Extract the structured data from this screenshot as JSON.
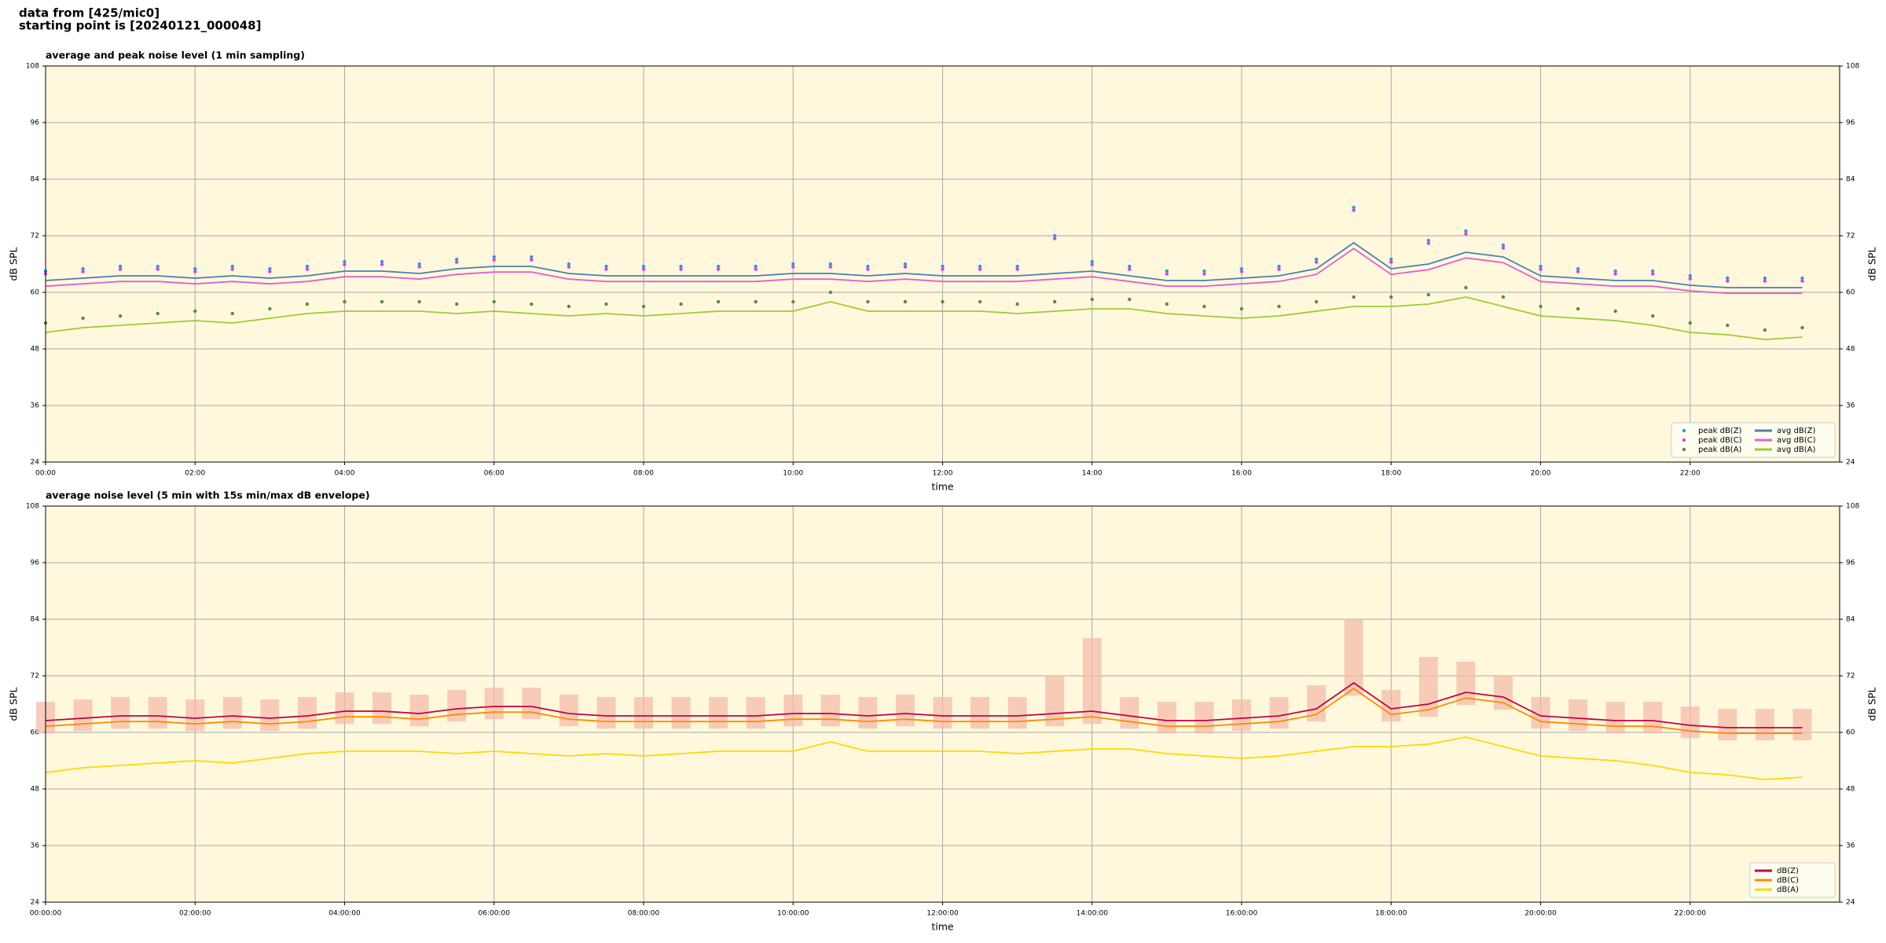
{
  "header": {
    "lines": [
      "data from [425/mic0]",
      "starting point is [20240121_000048]"
    ]
  },
  "chart_data": [
    {
      "type": "line",
      "title": "average and peak noise level (1 min sampling)",
      "xlabel": "time",
      "ylabel": "dB SPL",
      "x": [
        "00:00",
        "00:30",
        "01:00",
        "01:30",
        "02:00",
        "02:30",
        "03:00",
        "03:30",
        "04:00",
        "04:30",
        "05:00",
        "05:30",
        "06:00",
        "06:30",
        "07:00",
        "07:30",
        "08:00",
        "08:30",
        "09:00",
        "09:30",
        "10:00",
        "10:30",
        "11:00",
        "11:30",
        "12:00",
        "12:30",
        "13:00",
        "13:30",
        "14:00",
        "14:30",
        "15:00",
        "15:30",
        "16:00",
        "16:30",
        "17:00",
        "17:30",
        "18:00",
        "18:30",
        "19:00",
        "19:30",
        "20:00",
        "20:30",
        "21:00",
        "21:30",
        "22:00",
        "22:30",
        "23:00",
        "23:30"
      ],
      "xlim": [
        "00:00",
        "24:00"
      ],
      "xticks": [
        "00:00",
        "02:00",
        "04:00",
        "06:00",
        "08:00",
        "10:00",
        "12:00",
        "14:00",
        "16:00",
        "18:00",
        "20:00",
        "22:00"
      ],
      "ylim": [
        24,
        108
      ],
      "yticks": [
        24,
        36,
        48,
        60,
        72,
        84,
        96,
        108
      ],
      "grid": true,
      "legend": "lower right",
      "legend_columns": 2,
      "series": [
        {
          "name": "peak dB(Z)",
          "style": "dots",
          "color": "#1f9fde",
          "values": [
            64.5,
            65,
            65.5,
            65.5,
            65,
            65.5,
            65,
            65.5,
            66.5,
            66.5,
            66,
            67,
            67.5,
            67.5,
            66,
            65.5,
            65.5,
            65.5,
            65.5,
            65.5,
            66,
            66,
            65.5,
            66,
            65.5,
            65.5,
            65.5,
            72,
            66.5,
            65.5,
            64.5,
            64.5,
            65,
            65.5,
            67,
            78,
            67,
            71,
            73,
            70,
            65.5,
            65,
            64.5,
            64.5,
            63.5,
            63,
            63,
            63
          ]
        },
        {
          "name": "peak dB(C)",
          "style": "dots",
          "color": "#e040e0",
          "values": [
            63.9,
            64.4,
            64.9,
            64.9,
            64.4,
            64.9,
            64.4,
            64.9,
            65.9,
            65.9,
            65.4,
            66.4,
            66.9,
            66.9,
            65.4,
            64.9,
            64.9,
            64.9,
            64.9,
            64.9,
            65.4,
            65.4,
            64.9,
            65.4,
            64.9,
            64.9,
            64.9,
            71.4,
            65.9,
            64.9,
            63.9,
            63.9,
            64.4,
            64.9,
            66.4,
            77.4,
            66.4,
            70.4,
            72.4,
            69.4,
            64.9,
            64.4,
            63.9,
            63.9,
            62.9,
            62.4,
            62.4,
            62.4
          ]
        },
        {
          "name": "peak dB(A)",
          "style": "dots",
          "color": "#4f8f3a",
          "values": [
            53.5,
            54.5,
            55,
            55.5,
            56,
            55.5,
            56.5,
            57.5,
            58,
            58,
            58,
            57.5,
            58,
            57.5,
            57,
            57.5,
            57,
            57.5,
            58,
            58,
            58,
            60,
            58,
            58,
            58,
            58,
            57.5,
            58,
            58.5,
            58.5,
            57.5,
            57,
            56.5,
            57,
            58,
            59,
            59,
            59.5,
            61,
            59,
            57,
            56.5,
            56,
            55,
            53.5,
            53,
            52,
            52.5
          ]
        },
        {
          "name": "avg dB(Z)",
          "style": "line",
          "color": "#4a7fb0",
          "values": [
            62.5,
            63,
            63.5,
            63.5,
            63,
            63.5,
            63,
            63.5,
            64.5,
            64.5,
            64,
            65,
            65.5,
            65.5,
            64,
            63.5,
            63.5,
            63.5,
            63.5,
            63.5,
            64,
            64,
            63.5,
            64,
            63.5,
            63.5,
            63.5,
            64,
            64.5,
            63.5,
            62.5,
            62.5,
            63,
            63.5,
            65,
            70.5,
            65,
            66,
            68.5,
            67.5,
            63.5,
            63,
            62.5,
            62.5,
            61.5,
            61,
            61,
            61
          ]
        },
        {
          "name": "avg dB(C)",
          "style": "line",
          "color": "#e060d0",
          "values": [
            61.3,
            61.8,
            62.3,
            62.3,
            61.8,
            62.3,
            61.8,
            62.3,
            63.3,
            63.3,
            62.8,
            63.8,
            64.3,
            64.3,
            62.8,
            62.3,
            62.3,
            62.3,
            62.3,
            62.3,
            62.8,
            62.8,
            62.3,
            62.8,
            62.3,
            62.3,
            62.3,
            62.8,
            63.3,
            62.3,
            61.3,
            61.3,
            61.8,
            62.3,
            63.8,
            69.3,
            63.8,
            64.8,
            67.3,
            66.3,
            62.3,
            61.8,
            61.3,
            61.3,
            60.3,
            59.8,
            59.8,
            59.8
          ]
        },
        {
          "name": "avg dB(A)",
          "style": "line",
          "color": "#9acd32",
          "values": [
            51.5,
            52.5,
            53,
            53.5,
            54,
            53.5,
            54.5,
            55.5,
            56,
            56,
            56,
            55.5,
            56,
            55.5,
            55,
            55.5,
            55,
            55.5,
            56,
            56,
            56,
            58,
            56,
            56,
            56,
            56,
            55.5,
            56,
            56.5,
            56.5,
            55.5,
            55,
            54.5,
            55,
            56,
            57,
            57,
            57.5,
            59,
            57,
            55,
            54.5,
            54,
            53,
            51.5,
            51,
            50,
            50.5
          ]
        }
      ]
    },
    {
      "type": "line",
      "title": "average noise level (5 min with 15s min/max dB envelope)",
      "xlabel": "time",
      "ylabel": "dB SPL",
      "x": [
        "00:00:00",
        "00:30:00",
        "01:00:00",
        "01:30:00",
        "02:00:00",
        "02:30:00",
        "03:00:00",
        "03:30:00",
        "04:00:00",
        "04:30:00",
        "05:00:00",
        "05:30:00",
        "06:00:00",
        "06:30:00",
        "07:00:00",
        "07:30:00",
        "08:00:00",
        "08:30:00",
        "09:00:00",
        "09:30:00",
        "10:00:00",
        "10:30:00",
        "11:00:00",
        "11:30:00",
        "12:00:00",
        "12:30:00",
        "13:00:00",
        "13:30:00",
        "14:00:00",
        "14:30:00",
        "15:00:00",
        "15:30:00",
        "16:00:00",
        "16:30:00",
        "17:00:00",
        "17:30:00",
        "18:00:00",
        "18:30:00",
        "19:00:00",
        "19:30:00",
        "20:00:00",
        "20:30:00",
        "21:00:00",
        "21:30:00",
        "22:00:00",
        "22:30:00",
        "23:00:00",
        "23:30:00"
      ],
      "xlim": [
        "00:00:00",
        "24:00:00"
      ],
      "xticks": [
        "00:00:00",
        "02:00:00",
        "04:00:00",
        "06:00:00",
        "08:00:00",
        "10:00:00",
        "12:00:00",
        "14:00:00",
        "16:00:00",
        "18:00:00",
        "20:00:00",
        "22:00:00"
      ],
      "ylim": [
        24,
        108
      ],
      "yticks": [
        24,
        36,
        48,
        60,
        72,
        84,
        96,
        108
      ],
      "grid": true,
      "legend": "lower right",
      "legend_columns": 1,
      "series": [
        {
          "style": "envelope",
          "color": "#f4b8a8",
          "lows": [
            59.8,
            60.3,
            60.8,
            60.8,
            60.3,
            60.8,
            60.3,
            60.8,
            61.8,
            61.8,
            61.3,
            62.3,
            62.8,
            62.8,
            61.3,
            60.8,
            60.8,
            60.8,
            60.8,
            60.8,
            61.3,
            61.3,
            60.8,
            61.3,
            60.8,
            60.8,
            60.8,
            61.3,
            61.8,
            60.8,
            59.8,
            59.8,
            60.3,
            60.8,
            62.3,
            67.8,
            62.3,
            63.3,
            65.8,
            64.8,
            60.8,
            60.3,
            59.8,
            59.8,
            58.8,
            58.3,
            58.3,
            58.3
          ],
          "values": [
            66.5,
            67,
            67.5,
            67.5,
            67,
            67.5,
            67,
            67.5,
            68.5,
            68.5,
            68,
            69,
            69.5,
            69.5,
            68,
            67.5,
            67.5,
            67.5,
            67.5,
            67.5,
            68,
            68,
            67.5,
            68,
            67.5,
            67.5,
            67.5,
            72,
            80,
            67.5,
            66.5,
            66.5,
            67,
            67.5,
            70,
            84,
            69,
            76,
            75,
            72,
            67.5,
            67,
            66.5,
            66.5,
            65.5,
            65,
            65,
            65
          ]
        },
        {
          "name": "dB(Z)",
          "style": "line",
          "color": "#c8003c",
          "values": [
            62.5,
            63,
            63.5,
            63.5,
            63,
            63.5,
            63,
            63.5,
            64.5,
            64.5,
            64,
            65,
            65.5,
            65.5,
            64,
            63.5,
            63.5,
            63.5,
            63.5,
            63.5,
            64,
            64,
            63.5,
            64,
            63.5,
            63.5,
            63.5,
            64,
            64.5,
            63.5,
            62.5,
            62.5,
            63,
            63.5,
            65,
            70.5,
            65,
            66,
            68.5,
            67.5,
            63.5,
            63,
            62.5,
            62.5,
            61.5,
            61,
            61,
            61
          ]
        },
        {
          "name": "dB(C)",
          "style": "line",
          "color": "#ff8c00",
          "values": [
            61.3,
            61.8,
            62.3,
            62.3,
            61.8,
            62.3,
            61.8,
            62.3,
            63.3,
            63.3,
            62.8,
            63.8,
            64.3,
            64.3,
            62.8,
            62.3,
            62.3,
            62.3,
            62.3,
            62.3,
            62.8,
            62.8,
            62.3,
            62.8,
            62.3,
            62.3,
            62.3,
            62.8,
            63.3,
            62.3,
            61.3,
            61.3,
            61.8,
            62.3,
            63.8,
            69.3,
            63.8,
            64.8,
            67.3,
            66.3,
            62.3,
            61.8,
            61.3,
            61.3,
            60.3,
            59.8,
            59.8,
            59.8
          ]
        },
        {
          "name": "dB(A)",
          "style": "line",
          "color": "#ffd700",
          "values": [
            51.5,
            52.5,
            53,
            53.5,
            54,
            53.5,
            54.5,
            55.5,
            56,
            56,
            56,
            55.5,
            56,
            55.5,
            55,
            55.5,
            55,
            55.5,
            56,
            56,
            56,
            58,
            56,
            56,
            56,
            56,
            55.5,
            56,
            56.5,
            56.5,
            55.5,
            55,
            54.5,
            55,
            56,
            57,
            57,
            57.5,
            59,
            57,
            55,
            54.5,
            54,
            53,
            51.5,
            51,
            50,
            50.5
          ]
        }
      ]
    }
  ]
}
